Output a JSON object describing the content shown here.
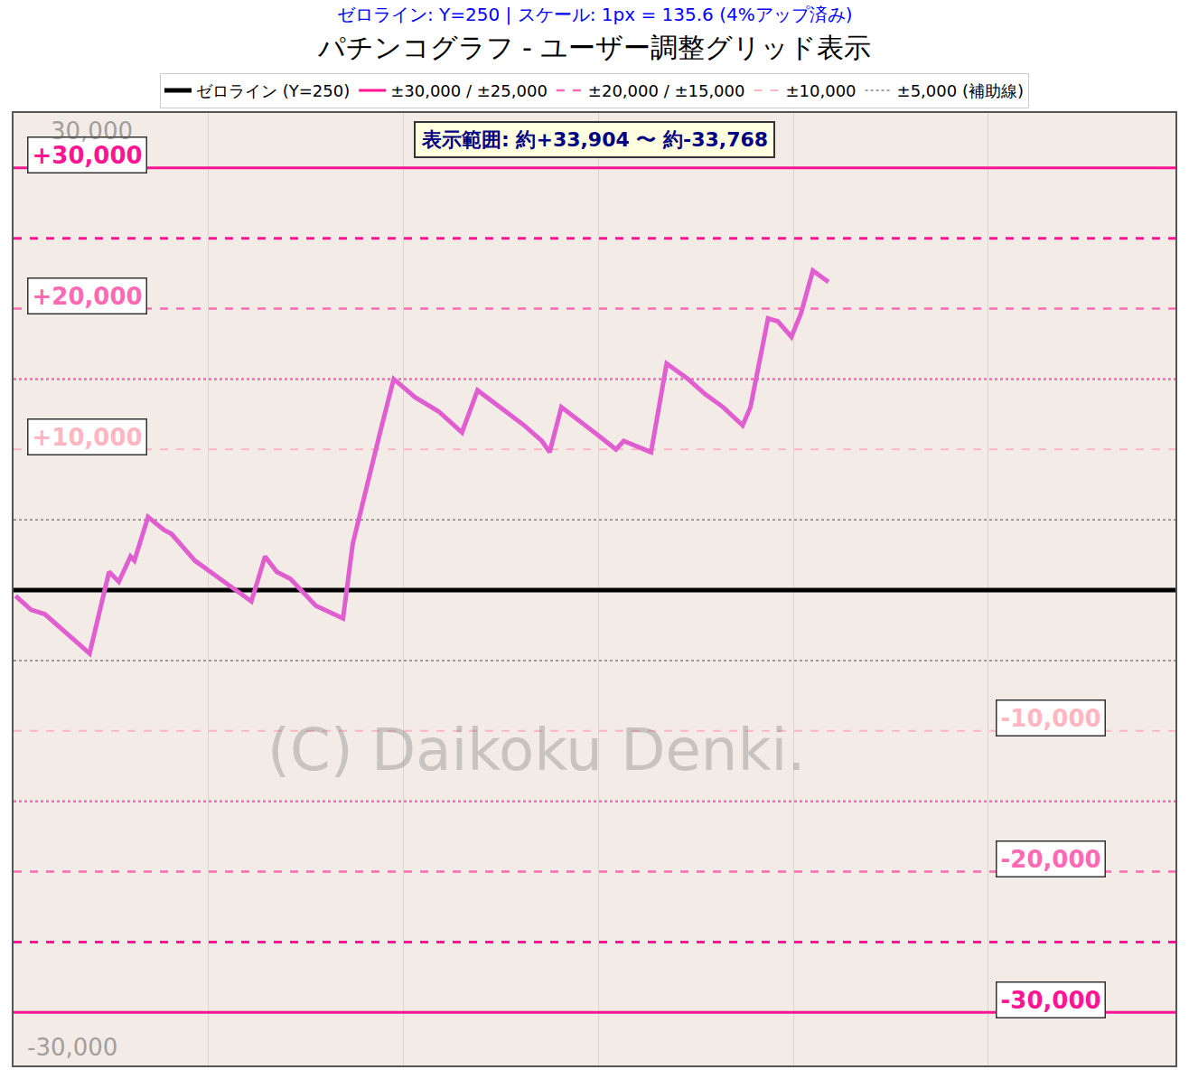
{
  "chart_data": {
    "type": "line",
    "title": "パチンコグラフ - ユーザー調整グリッド表示",
    "subtitle": "ゼロライン: Y=250 | スケール: 1px = 135.6 (4%アップ済み)",
    "annotations": [
      {
        "text": "表示範囲: 約+33,904 〜 約-33,768"
      }
    ],
    "x": [
      0.01,
      0.09,
      0.16,
      0.39,
      0.49,
      0.54,
      0.6,
      0.62,
      0.69,
      0.77,
      0.81,
      0.88,
      0.93,
      1.22,
      1.29,
      1.35,
      1.42,
      1.55,
      1.69,
      1.74,
      1.81,
      1.88,
      1.95,
      2.06,
      2.18,
      2.3,
      2.38,
      2.53,
      2.62,
      2.71,
      2.75,
      2.81,
      2.9,
      2.99,
      3.09,
      3.13,
      3.27,
      3.35,
      3.46,
      3.55,
      3.64,
      3.74,
      3.78,
      3.87,
      3.92,
      3.99,
      4.04,
      4.1,
      4.18
    ],
    "series": [
      {
        "color": "#e05ed0",
        "values": [
          -400,
          -1400,
          -1700,
          -4500,
          1300,
          600,
          2400,
          2100,
          5200,
          4300,
          4000,
          2900,
          2100,
          -800,
          2400,
          1300,
          800,
          -1100,
          -2000,
          3300,
          7400,
          11200,
          15000,
          13700,
          12700,
          11200,
          14200,
          12600,
          11700,
          10600,
          9800,
          13000,
          12000,
          11100,
          10000,
          10600,
          9800,
          16100,
          15000,
          13900,
          13000,
          11700,
          13000,
          19300,
          19100,
          18000,
          19700,
          22700,
          21900
        ]
      }
    ],
    "xlim": [
      0,
      5.96
    ],
    "xticks": [
      1,
      2,
      3,
      4,
      5
    ],
    "ylim": [
      -33768,
      33904
    ],
    "grid": true,
    "tick_labels": false,
    "legend": "top",
    "reference_lines": [
      {
        "name": "ゼロライン (Y=250)",
        "color": "#000000",
        "lines": [
          {
            "value": 0,
            "line_style": "solid"
          }
        ]
      },
      {
        "name": "±30,000 / ±25,000",
        "color": "#ff1493",
        "lines": [
          {
            "value": 30000,
            "line_style": "solid"
          },
          {
            "value": -30000,
            "line_style": "solid"
          },
          {
            "value": 25000,
            "line_style": "dash"
          },
          {
            "value": -25000,
            "line_style": "dash"
          }
        ]
      },
      {
        "name": "±20,000 / ±15,000",
        "color": "#ff69b4",
        "lines": [
          {
            "value": 20000,
            "line_style": "dash"
          },
          {
            "value": -20000,
            "line_style": "dash"
          },
          {
            "value": 15000,
            "line_style": "dot"
          },
          {
            "value": -15000,
            "line_style": "dot"
          }
        ]
      },
      {
        "name": "±10,000",
        "color": "#ffb6c1",
        "lines": [
          {
            "value": 10000,
            "line_style": "dash"
          },
          {
            "value": -10000,
            "line_style": "dash"
          }
        ]
      },
      {
        "name": "±5,000 (補助線)",
        "color": "#808080",
        "lines": [
          {
            "value": 5000,
            "line_style": "dot"
          },
          {
            "value": -5000,
            "line_style": "dot"
          }
        ]
      }
    ],
    "level_labels": [
      {
        "value": 30000,
        "label": "+30,000"
      },
      {
        "value": 20000,
        "label": "+20,000"
      },
      {
        "value": 10000,
        "label": "+10,000"
      },
      {
        "value": -10000,
        "label": "-10,000"
      },
      {
        "value": -20000,
        "label": "-20,000"
      },
      {
        "value": -30000,
        "label": "-30,000"
      }
    ],
    "watermark": "(C) Daikoku Denki.",
    "background_labels": [
      "30,000",
      "-30,000"
    ]
  }
}
